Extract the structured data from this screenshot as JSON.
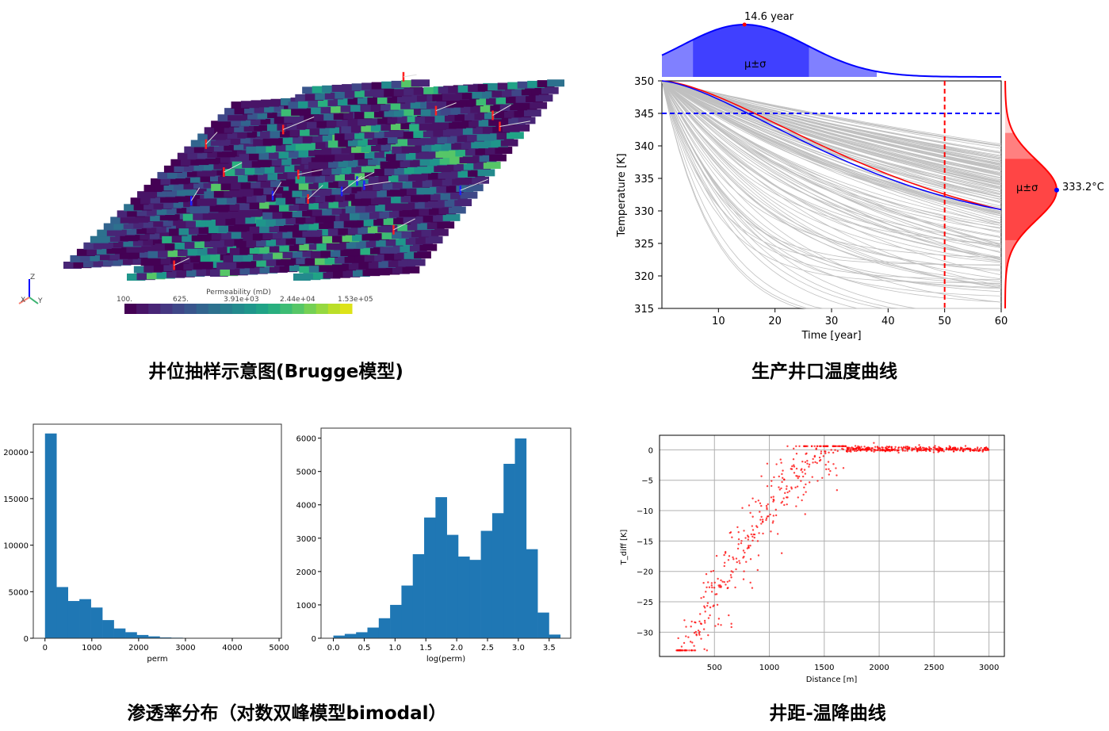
{
  "captions": {
    "reservoir": "井位抽样示意图(Brugge模型)",
    "temperature": "生产井口温度曲线",
    "perm": "渗透率分布（对数双峰模型bimodal）",
    "spacing": "井距-温降曲线"
  },
  "colorbar": {
    "title": "Permeability (mD)",
    "ticks": [
      "100.",
      "625.",
      "3.91e+03",
      "2.44e+04",
      "1.53e+05"
    ],
    "colors": [
      "#440154",
      "#481467",
      "#482576",
      "#453781",
      "#3f4788",
      "#39558c",
      "#32648e",
      "#2d718e",
      "#287d8e",
      "#238a8d",
      "#1f968b",
      "#20a386",
      "#29af7f",
      "#3dbc74",
      "#56c667",
      "#75d054",
      "#95d840",
      "#bade28",
      "#dde318"
    ]
  },
  "axes_triad": {
    "z": "Z",
    "x": "X",
    "y": "Y"
  },
  "chart_data": [
    {
      "type": "line",
      "title": "",
      "xlabel": "Time [year]",
      "ylabel": "Temperature [K]",
      "xlim": [
        0,
        60
      ],
      "ylim": [
        315,
        350
      ],
      "xticks": [
        "10",
        "20",
        "30",
        "40",
        "50",
        "60"
      ],
      "yticks": [
        "315",
        "320",
        "325",
        "330",
        "335",
        "340",
        "345",
        "350"
      ],
      "threshold_temperature": 345,
      "evaluation_time": 50,
      "top_marginal": {
        "peak_label": "14.6 year",
        "peak": 14.6,
        "band_label": "μ±σ",
        "sigma": 11
      },
      "right_marginal": {
        "peak_label": "333.2°C",
        "peak": 333.2,
        "band_label": "μ±σ",
        "sigma": 3.3
      },
      "mean_curve_color": "#ff0000",
      "median_curve_color": "#0000ff",
      "ensemble_color": "#c0c0c0"
    },
    {
      "type": "bar",
      "title": "",
      "xlabel": "perm",
      "ylabel": "",
      "xlim": [
        0,
        5000
      ],
      "ylim": [
        0,
        23000
      ],
      "bin_width": 245,
      "xticks": [
        "0",
        "1000",
        "2000",
        "3000",
        "4000",
        "5000"
      ],
      "yticks": [
        "0",
        "5000",
        "10000",
        "15000",
        "20000"
      ],
      "values": [
        22000,
        5500,
        4000,
        4200,
        3300,
        1950,
        1050,
        650,
        350,
        200,
        90,
        60,
        15,
        5,
        0,
        0,
        0,
        0,
        0,
        0
      ]
    },
    {
      "type": "bar",
      "title": "",
      "xlabel": "log(perm)",
      "ylabel": "",
      "xlim": [
        -0.2,
        3.85
      ],
      "ylim": [
        0,
        6300
      ],
      "bin_start": 0,
      "bin_width": 0.184,
      "xticks": [
        "0.0",
        "0.5",
        "1.0",
        "1.5",
        "2.0",
        "2.5",
        "3.0",
        "3.5"
      ],
      "yticks": [
        "0",
        "1000",
        "2000",
        "3000",
        "4000",
        "5000",
        "6000"
      ],
      "values": [
        80,
        130,
        180,
        320,
        600,
        1000,
        1580,
        2520,
        3620,
        4230,
        3100,
        2450,
        2350,
        3220,
        3750,
        5230,
        5990,
        2670,
        770,
        110
      ]
    },
    {
      "type": "scatter",
      "title": "",
      "xlabel": "Distance [m]",
      "ylabel": "T_diff [K]",
      "xlim": [
        0,
        3140
      ],
      "ylim": [
        -34,
        2.4
      ],
      "xticks": [
        "500",
        "1000",
        "1500",
        "2000",
        "2500",
        "3000"
      ],
      "yticks": [
        "0",
        "−5",
        "−10",
        "−15",
        "−20",
        "−25",
        "−30"
      ],
      "grid": true,
      "color": "#ff0000"
    }
  ]
}
